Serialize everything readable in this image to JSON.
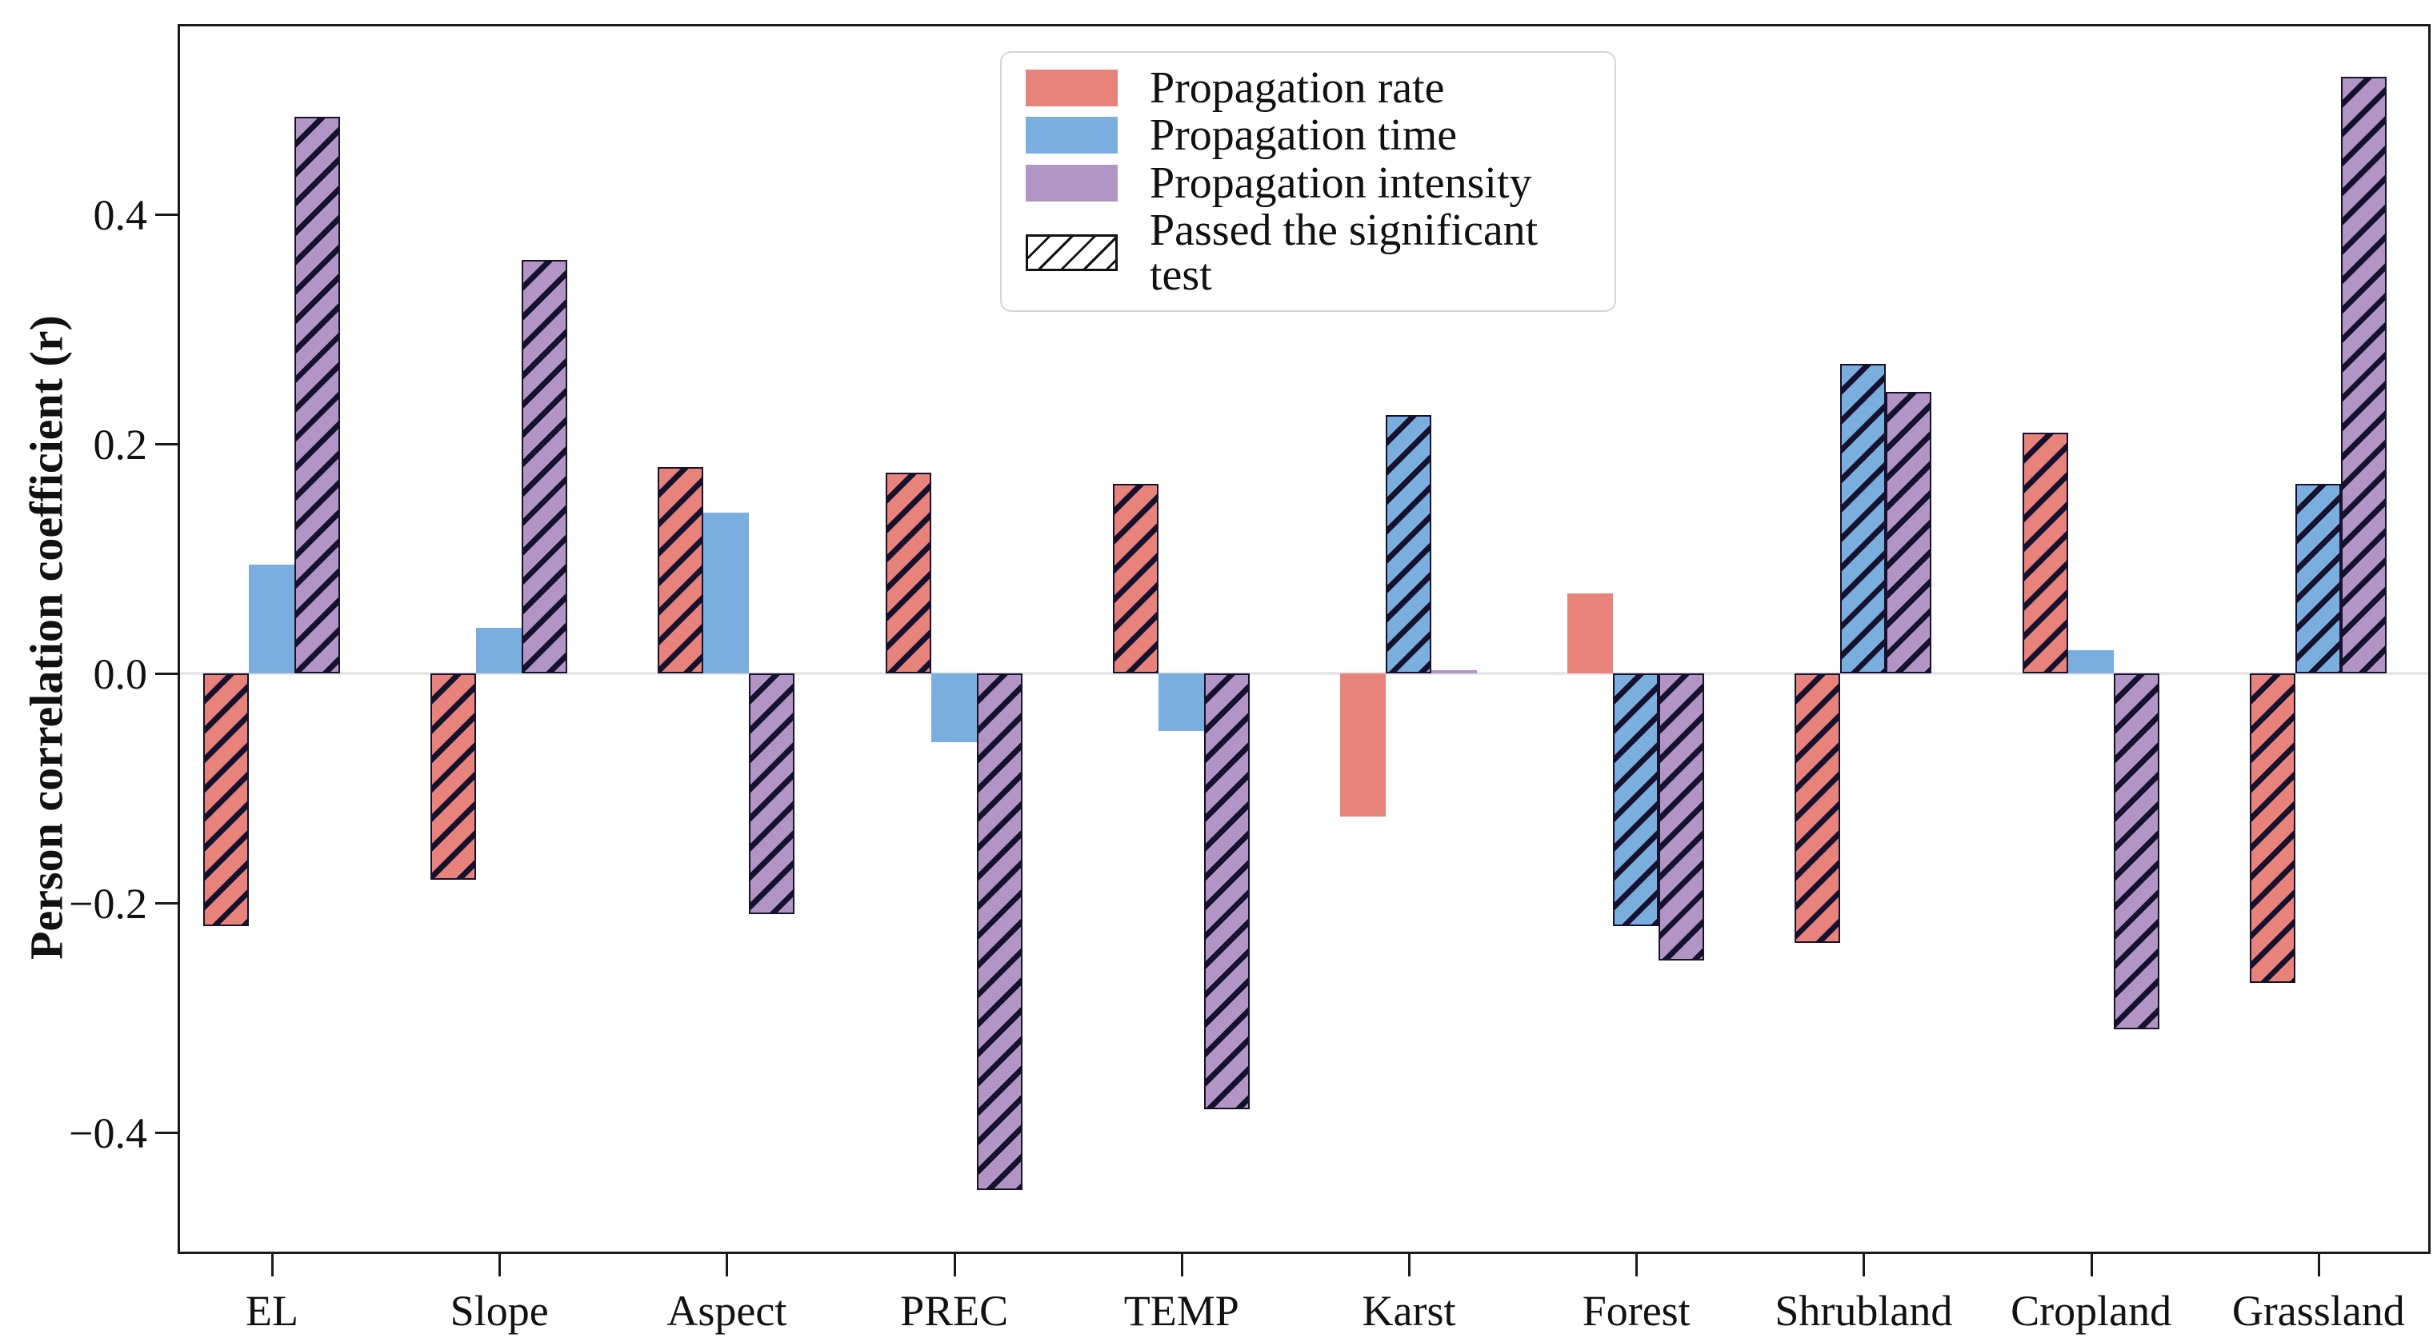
{
  "ylabel": "Person correlation coefficient (r)",
  "colors": {
    "rate": "#e8837c",
    "time": "#7aaede",
    "intensity": "#b295c4",
    "hatch_line": "#16112c",
    "zero_line": "#e7e7e7",
    "axis": "#1a1a1a"
  },
  "y_axis": {
    "ticks": [
      {
        "label": "0.4",
        "value": 0.4
      },
      {
        "label": "0.2",
        "value": 0.2
      },
      {
        "label": "0.0",
        "value": 0.0
      },
      {
        "label": "−0.2",
        "value": -0.2
      },
      {
        "label": "−0.4",
        "value": -0.4
      }
    ]
  },
  "legend": {
    "items": [
      {
        "label": "Propagation rate",
        "swatch": "rate"
      },
      {
        "label": "Propagation time",
        "swatch": "time"
      },
      {
        "label": "Propagation intensity",
        "swatch": "intensity"
      },
      {
        "label": "Passed the significant test",
        "swatch": "hatch"
      }
    ]
  },
  "chart_data": {
    "type": "bar",
    "title": "",
    "xlabel": "",
    "ylabel": "Person correlation coefficient (r)",
    "ylim": [
      -0.52,
      0.56
    ],
    "grid": "zero-line only",
    "legend_position": "upper center",
    "hatch_meaning": "Passed the significant test",
    "categories": [
      "EL",
      "Slope",
      "Aspect",
      "PREC",
      "TEMP",
      "Karst",
      "Forest",
      "Shrubland",
      "Cropland",
      "Grassland"
    ],
    "series": [
      {
        "name": "Propagation rate",
        "color_key": "rate",
        "values": [
          -0.22,
          -0.18,
          0.18,
          0.175,
          0.165,
          -0.125,
          0.07,
          -0.235,
          0.21,
          -0.27
        ],
        "significant": [
          true,
          true,
          true,
          true,
          true,
          false,
          false,
          true,
          true,
          true
        ]
      },
      {
        "name": "Propagation time",
        "color_key": "time",
        "values": [
          0.095,
          0.04,
          0.14,
          -0.06,
          -0.05,
          0.225,
          -0.22,
          0.27,
          0.02,
          0.165
        ],
        "significant": [
          false,
          false,
          false,
          false,
          false,
          true,
          true,
          true,
          false,
          true
        ]
      },
      {
        "name": "Propagation intensity",
        "color_key": "intensity",
        "values": [
          0.485,
          0.36,
          -0.21,
          -0.45,
          -0.38,
          0.003,
          -0.25,
          0.245,
          -0.31,
          0.52
        ],
        "significant": [
          true,
          true,
          true,
          true,
          true,
          false,
          true,
          true,
          true,
          true
        ]
      }
    ]
  }
}
